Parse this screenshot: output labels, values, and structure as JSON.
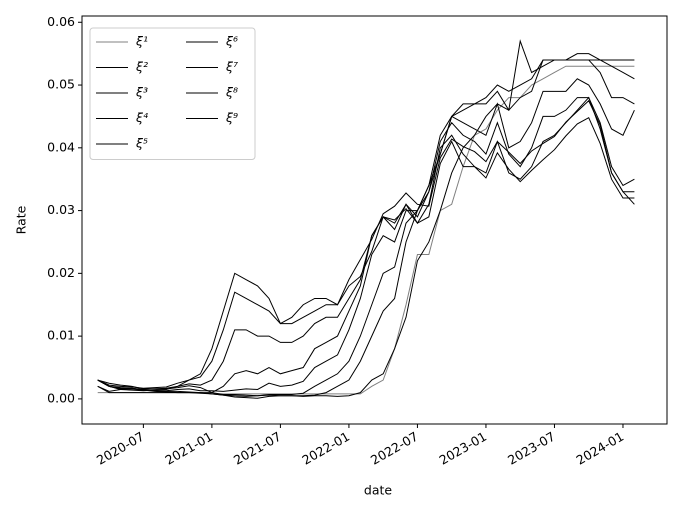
{
  "chart_data": {
    "type": "line",
    "xlabel": "date",
    "ylabel": "Rate",
    "x": [
      "2020-03",
      "2020-04",
      "2020-05",
      "2020-06",
      "2020-07",
      "2020-08",
      "2020-09",
      "2020-10",
      "2020-11",
      "2020-12",
      "2021-01",
      "2021-02",
      "2021-03",
      "2021-04",
      "2021-05",
      "2021-06",
      "2021-07",
      "2021-08",
      "2021-09",
      "2021-10",
      "2021-11",
      "2021-12",
      "2022-01",
      "2022-02",
      "2022-03",
      "2022-04",
      "2022-05",
      "2022-06",
      "2022-07",
      "2022-08",
      "2022-09",
      "2022-10",
      "2022-11",
      "2022-12",
      "2023-01",
      "2023-02",
      "2023-03",
      "2023-04",
      "2023-05",
      "2023-06",
      "2023-07",
      "2023-08",
      "2023-09",
      "2023-10",
      "2023-11",
      "2023-12",
      "2024-01",
      "2024-02"
    ],
    "xlim": [
      "2020-01-20",
      "2024-04-27"
    ],
    "xticks": [
      "2020-07",
      "2021-01",
      "2021-07",
      "2022-01",
      "2022-07",
      "2023-01",
      "2023-07",
      "2024-01"
    ],
    "ylim": [
      -0.004,
      0.061
    ],
    "yticks": [
      {
        "value": 0,
        "label": "0.00"
      },
      {
        "value": 0.01,
        "label": "0.01"
      },
      {
        "value": 0.02,
        "label": "0.02"
      },
      {
        "value": 0.03,
        "label": "0.03"
      },
      {
        "value": 0.04,
        "label": "0.04"
      },
      {
        "value": 0.05,
        "label": "0.05"
      },
      {
        "value": 0.06,
        "label": "0.06"
      }
    ],
    "grid": false,
    "legend": "upper left",
    "legend_columns": 2,
    "series": [
      {
        "name": "ξ¹",
        "color": "#808080",
        "values": [
          0.001,
          0.001,
          0.001,
          0.001,
          0.001,
          0.001,
          0.001,
          0.001,
          0.001,
          0.001,
          0.0008,
          0.0008,
          0.0008,
          0.0008,
          0.0008,
          0.0008,
          0.0008,
          0.0008,
          0.0008,
          0.0008,
          0.0008,
          0.0008,
          0.0008,
          0.0008,
          0.002,
          0.003,
          0.008,
          0.015,
          0.023,
          0.023,
          0.03,
          0.031,
          0.037,
          0.042,
          0.043,
          0.046,
          0.048,
          0.048,
          0.05,
          0.051,
          0.052,
          0.053,
          0.053,
          0.053,
          0.053,
          0.053,
          0.053,
          0.053
        ]
      },
      {
        "name": "ξ²",
        "color": "#000000",
        "values": [
          0.002,
          0.001,
          0.001,
          0.001,
          0.001,
          0.001,
          0.001,
          0.001,
          0.001,
          0.001,
          0.0008,
          0.0006,
          0.0003,
          0.0002,
          0.0001,
          0.0004,
          0.0005,
          0.0005,
          0.0004,
          0.0005,
          0.0005,
          0.0004,
          0.0005,
          0.001,
          0.003,
          0.004,
          0.008,
          0.013,
          0.022,
          0.025,
          0.03,
          0.036,
          0.04,
          0.042,
          0.045,
          0.047,
          0.046,
          0.057,
          0.052,
          0.053,
          0.054,
          0.054,
          0.054,
          0.054,
          0.054,
          0.054,
          0.054,
          0.054
        ]
      },
      {
        "name": "ξ³",
        "color": "#000000",
        "values": [
          0.002,
          0.0012,
          0.0015,
          0.0017,
          0.0014,
          0.0012,
          0.0011,
          0.001,
          0.001,
          0.0009,
          0.0008,
          0.0006,
          0.0005,
          0.0004,
          0.0005,
          0.0006,
          0.0005,
          0.0005,
          0.0005,
          0.0006,
          0.001,
          0.002,
          0.003,
          0.006,
          0.01,
          0.014,
          0.016,
          0.025,
          0.03,
          0.033,
          0.039,
          0.045,
          0.046,
          0.047,
          0.048,
          0.05,
          0.049,
          0.05,
          0.051,
          0.054,
          0.054,
          0.054,
          0.055,
          0.055,
          0.054,
          0.053,
          0.052,
          0.051
        ]
      },
      {
        "name": "ξ⁴",
        "color": "#000000",
        "values": [
          0.003,
          0.002,
          0.0017,
          0.0016,
          0.0014,
          0.0013,
          0.0012,
          0.0012,
          0.0011,
          0.001,
          0.001,
          0.0007,
          0.0007,
          0.0006,
          0.0005,
          0.0007,
          0.0007,
          0.0007,
          0.0009,
          0.002,
          0.003,
          0.004,
          0.006,
          0.01,
          0.015,
          0.02,
          0.021,
          0.028,
          0.03,
          0.034,
          0.039,
          0.045,
          0.047,
          0.047,
          0.047,
          0.049,
          0.046,
          0.048,
          0.049,
          0.054,
          0.054,
          0.054,
          0.054,
          0.054,
          0.052,
          0.048,
          0.048,
          0.047
        ]
      },
      {
        "name": "ξ⁵",
        "color": "#000000",
        "values": [
          0.003,
          0.002,
          0.0016,
          0.0016,
          0.0014,
          0.0013,
          0.0013,
          0.0015,
          0.0016,
          0.0013,
          0.0013,
          0.0012,
          0.0014,
          0.0016,
          0.0015,
          0.0025,
          0.002,
          0.0022,
          0.0028,
          0.005,
          0.006,
          0.007,
          0.011,
          0.016,
          0.023,
          0.026,
          0.025,
          0.03,
          0.03,
          0.034,
          0.042,
          0.045,
          0.044,
          0.043,
          0.042,
          0.047,
          0.04,
          0.041,
          0.044,
          0.049,
          0.049,
          0.049,
          0.051,
          0.05,
          0.047,
          0.043,
          0.042,
          0.046
        ]
      },
      {
        "name": "ξ⁶",
        "color": "#000000",
        "values": [
          0.003,
          0.0025,
          0.0022,
          0.002,
          0.0016,
          0.0016,
          0.0016,
          0.0018,
          0.0021,
          0.0018,
          0.001,
          0.002,
          0.004,
          0.0045,
          0.004,
          0.005,
          0.004,
          0.0045,
          0.005,
          0.008,
          0.009,
          0.01,
          0.014,
          0.018,
          0.026,
          0.029,
          0.027,
          0.031,
          0.029,
          0.033,
          0.041,
          0.044,
          0.042,
          0.041,
          0.039,
          0.044,
          0.039,
          0.037,
          0.04,
          0.045,
          0.045,
          0.046,
          0.048,
          0.048,
          0.044,
          0.037,
          0.034,
          0.035
        ]
      },
      {
        "name": "ξ⁷",
        "color": "#000000",
        "values": [
          0.003,
          0.002,
          0.0018,
          0.0017,
          0.0015,
          0.0016,
          0.0017,
          0.002,
          0.0024,
          0.0022,
          0.003,
          0.006,
          0.011,
          0.011,
          0.01,
          0.01,
          0.009,
          0.009,
          0.01,
          0.012,
          0.013,
          0.013,
          0.016,
          0.019,
          0.026,
          0.029,
          0.028,
          0.031,
          0.028,
          0.031,
          0.04,
          0.042,
          0.039,
          0.037,
          0.036,
          0.041,
          0.036,
          0.035,
          0.037,
          0.041,
          0.042,
          0.044,
          0.046,
          0.048,
          0.043,
          0.036,
          0.033,
          0.033
        ]
      },
      {
        "name": "ξ⁸",
        "color": "#000000",
        "values": [
          0.003,
          0.0022,
          0.002,
          0.0019,
          0.0017,
          0.0018,
          0.0019,
          0.0025,
          0.003,
          0.0035,
          0.006,
          0.011,
          0.017,
          0.016,
          0.015,
          0.014,
          0.012,
          0.012,
          0.013,
          0.014,
          0.015,
          0.015,
          0.018,
          0.0195,
          0.0235,
          0.029,
          0.0285,
          0.0303,
          0.028,
          0.029,
          0.0375,
          0.041,
          0.037,
          0.037,
          0.0352,
          0.0392,
          0.0366,
          0.0346,
          0.0364,
          0.0381,
          0.0397,
          0.0419,
          0.0438,
          0.0448,
          0.0407,
          0.035,
          0.032,
          0.032
        ]
      },
      {
        "name": "ξ⁹",
        "color": "#000000",
        "values": [
          0.003,
          0.002,
          0.0015,
          0.0014,
          0.0013,
          0.0014,
          0.0015,
          0.002,
          0.003,
          0.004,
          0.008,
          0.014,
          0.02,
          0.019,
          0.018,
          0.016,
          0.012,
          0.013,
          0.015,
          0.016,
          0.016,
          0.015,
          0.019,
          0.0222,
          0.0254,
          0.0295,
          0.0307,
          0.0328,
          0.031,
          0.0307,
          0.0384,
          0.0414,
          0.0402,
          0.0394,
          0.0378,
          0.041,
          0.0393,
          0.0375,
          0.0395,
          0.0407,
          0.0418,
          0.0441,
          0.0458,
          0.0475,
          0.0436,
          0.036,
          0.033,
          0.031
        ]
      }
    ]
  }
}
